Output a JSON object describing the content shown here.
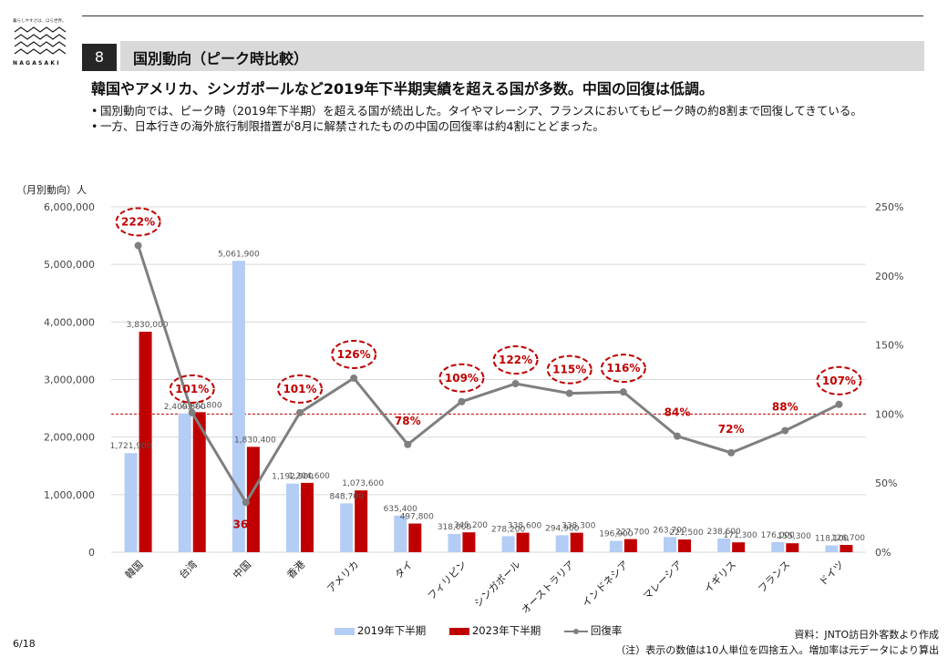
{
  "logo": {
    "tagline": "暮らしやすさは、ほら世界。",
    "wordmark": "NAGASAKI"
  },
  "section": {
    "number": "8",
    "title": "国別動向（ピーク時比較）"
  },
  "headline": "韓国やアメリカ、シンガポールなど2019年下半期実績を超える国が多数。中国の回復は低調。",
  "bullets": [
    "国別動向では、ピーク時（2019年下半期）を超える国が続出した。タイやマレーシア、フランスにおいてもピーク時の約8割まで回復してきている。",
    "一方、日本行きの海外旅行制限措置が8月に解禁されたものの中国の回復率は約4割にとどまった。"
  ],
  "colors": {
    "series2019": "#b4cdf5",
    "series2023": "#c00000",
    "rate": "#7f7f7f",
    "highlight": "#c00000"
  },
  "chart_data": {
    "type": "bar",
    "ylabel": "（月別動向）人",
    "ylim": [
      0,
      6000000
    ],
    "y_ticks": [
      0,
      1000000,
      2000000,
      3000000,
      4000000,
      5000000,
      6000000
    ],
    "y_tick_labels": [
      "0",
      "1,000,000",
      "2,000,000",
      "3,000,000",
      "4,000,000",
      "5,000,000",
      "6,000,000"
    ],
    "y2lim": [
      0,
      250
    ],
    "y2_ticks": [
      0,
      50,
      100,
      150,
      200,
      250
    ],
    "y2_tick_labels": [
      "0%",
      "50%",
      "100%",
      "150%",
      "200%",
      "250%"
    ],
    "reference_line": 100,
    "categories": [
      "韓国",
      "台湾",
      "中国",
      "香港",
      "アメリカ",
      "タイ",
      "フィリピン",
      "シンガポール",
      "オーストラリア",
      "インドネシア",
      "マレーシア",
      "イギリス",
      "フランス",
      "ドイツ"
    ],
    "series": [
      {
        "name": "2019年下半期",
        "values": [
          1721900,
          2409800,
          5061900,
          1192900,
          848700,
          635400,
          318000,
          278200,
          294900,
          196900,
          263700,
          238600,
          176000,
          118100
        ],
        "labels": [
          "1,721,900",
          "2,409,800",
          "5,061,900",
          "1,192,900",
          "848,700",
          "635,400",
          "318,000",
          "278,200",
          "294,900",
          "196,900",
          "263,700",
          "238,600",
          "176,000",
          "118,100"
        ]
      },
      {
        "name": "2023年下半期",
        "values": [
          3830000,
          2432800,
          1830400,
          1204600,
          1073600,
          497800,
          345200,
          338600,
          338300,
          227700,
          221500,
          171300,
          155300,
          126700
        ],
        "labels": [
          "3,830,000",
          "2,432,800",
          "1,830,400",
          "1,204,600",
          "1,073,600",
          "497,800",
          "345,200",
          "338,600",
          "338,300",
          "227,700",
          "221,500",
          "171,300",
          "155,300",
          "126,700"
        ]
      },
      {
        "name": "回復率",
        "type": "line",
        "axis": "right",
        "values": [
          222,
          101,
          36,
          101,
          126,
          78,
          109,
          122,
          115,
          116,
          84,
          72,
          88,
          107
        ],
        "labels": [
          "222%",
          "101%",
          "36%",
          "101%",
          "126%",
          "78%",
          "109%",
          "122%",
          "115%",
          "116%",
          "84%",
          "72%",
          "88%",
          "107%"
        ],
        "circled": [
          true,
          true,
          false,
          true,
          true,
          false,
          true,
          true,
          true,
          true,
          false,
          false,
          false,
          true
        ]
      }
    ],
    "legend": "bottom"
  },
  "footer": {
    "page": "6/18",
    "source": "資料：JNTO訪日外客数より作成",
    "note": "（注）表示の数値は10人単位を四捨五入。増加率は元データにより算出"
  }
}
